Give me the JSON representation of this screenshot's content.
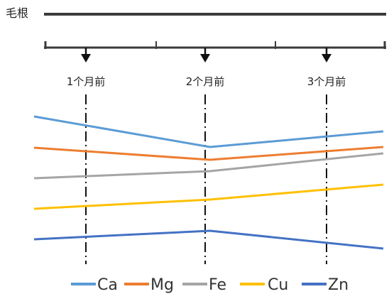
{
  "diagram": {
    "hair_root_label": "毛根",
    "markers": [
      {
        "label": "1个月前"
      },
      {
        "label": "2个月前"
      },
      {
        "label": "3个月前"
      }
    ]
  },
  "chart_data": {
    "type": "line",
    "x": [
      "1个月前",
      "2个月前",
      "3个月前"
    ],
    "series": [
      {
        "name": "Ca",
        "color": "#5B9BD5",
        "trend": "decrease then increase"
      },
      {
        "name": "Mg",
        "color": "#ED7D31",
        "trend": "slight decrease then increase"
      },
      {
        "name": "Fe",
        "color": "#A5A5A5",
        "trend": "gradual increase"
      },
      {
        "name": "Cu",
        "color": "#FFC000",
        "trend": "gradual increase"
      },
      {
        "name": "Zn",
        "color": "#4472C4",
        "trend": "increase then decrease"
      }
    ],
    "legend_position": "bottom",
    "grid": false
  }
}
